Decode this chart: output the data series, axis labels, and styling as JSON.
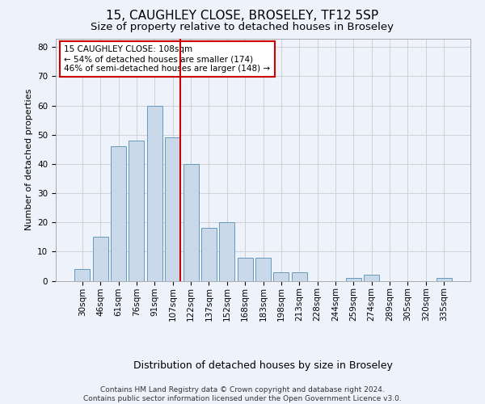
{
  "title1": "15, CAUGHLEY CLOSE, BROSELEY, TF12 5SP",
  "title2": "Size of property relative to detached houses in Broseley",
  "xlabel": "Distribution of detached houses by size in Broseley",
  "ylabel": "Number of detached properties",
  "categories": [
    "30sqm",
    "46sqm",
    "61sqm",
    "76sqm",
    "91sqm",
    "107sqm",
    "122sqm",
    "137sqm",
    "152sqm",
    "168sqm",
    "183sqm",
    "198sqm",
    "213sqm",
    "228sqm",
    "244sqm",
    "259sqm",
    "274sqm",
    "289sqm",
    "305sqm",
    "320sqm",
    "335sqm"
  ],
  "values": [
    4,
    15,
    46,
    48,
    60,
    49,
    40,
    18,
    20,
    8,
    8,
    3,
    3,
    0,
    0,
    1,
    2,
    0,
    0,
    0,
    1
  ],
  "bar_color": "#c9d9ea",
  "bar_edge_color": "#6699bb",
  "vline_x": 5.425,
  "vline_color": "#cc0000",
  "annotation_text": "15 CAUGHLEY CLOSE: 108sqm\n← 54% of detached houses are smaller (174)\n46% of semi-detached houses are larger (148) →",
  "annotation_box_color": "#ffffff",
  "annotation_box_edge": "#cc0000",
  "ylim": [
    0,
    83
  ],
  "yticks": [
    0,
    10,
    20,
    30,
    40,
    50,
    60,
    70,
    80
  ],
  "grid_color": "#cccccc",
  "background_color": "#eef2fa",
  "footer_text": "Contains HM Land Registry data © Crown copyright and database right 2024.\nContains public sector information licensed under the Open Government Licence v3.0.",
  "title1_fontsize": 11,
  "title2_fontsize": 9.5,
  "xlabel_fontsize": 9,
  "ylabel_fontsize": 8,
  "tick_fontsize": 7.5,
  "annotation_fontsize": 7.5,
  "footer_fontsize": 6.5
}
